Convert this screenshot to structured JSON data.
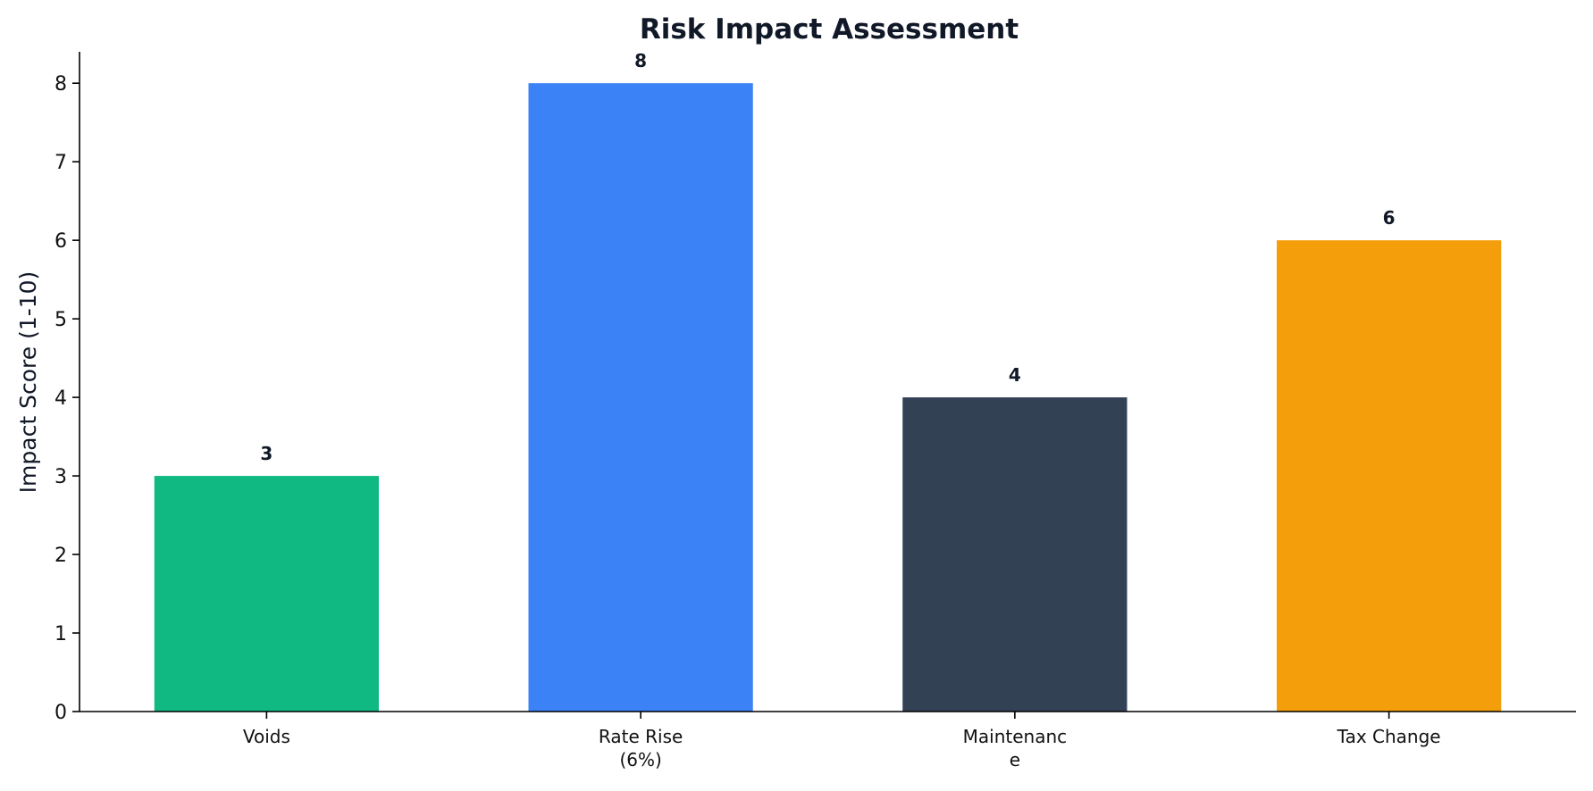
{
  "chart_data": {
    "type": "bar",
    "title": "Risk Impact Assessment",
    "ylabel": "Impact Score (1-10)",
    "xlabel": "",
    "ylim": [
      0,
      8.4
    ],
    "yticks": [
      "0",
      "1",
      "2",
      "3",
      "4",
      "5",
      "6",
      "7",
      "8"
    ],
    "grid": false,
    "categories": [
      {
        "lines": [
          "Voids"
        ]
      },
      {
        "lines": [
          "Rate Rise",
          "(6%)"
        ]
      },
      {
        "lines": [
          "Maintenanc",
          "e"
        ]
      },
      {
        "lines": [
          "Tax Change"
        ]
      }
    ],
    "values": [
      3,
      8,
      4,
      6
    ],
    "value_labels": [
      "3",
      "8",
      "4",
      "6"
    ],
    "colors": [
      "#10b981",
      "#3b82f6",
      "#334155",
      "#f59e0b"
    ]
  }
}
